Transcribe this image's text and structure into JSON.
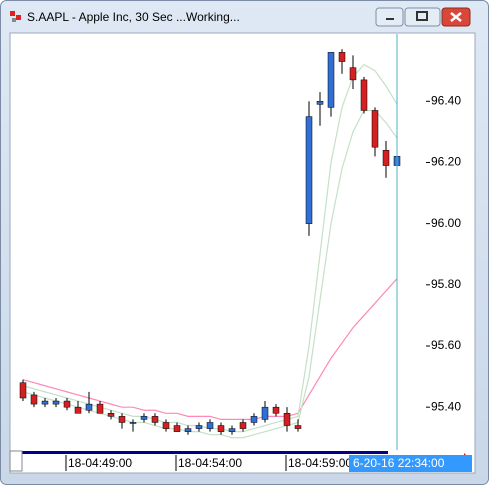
{
  "window": {
    "title": "S.AAPL - Apple Inc, 30 Sec ...Working..."
  },
  "chart_data": {
    "type": "candlestick",
    "categories": [
      null,
      null,
      null,
      null,
      "18-04:49:00",
      null,
      null,
      null,
      null,
      null,
      null,
      null,
      null,
      null,
      "18-04:54:00",
      null,
      null,
      null,
      null,
      null,
      null,
      null,
      null,
      null,
      "18-04:59:00",
      null,
      null,
      null,
      null,
      null,
      null,
      null,
      null,
      null,
      null
    ],
    "open": [
      95.48,
      95.44,
      95.41,
      95.41,
      95.42,
      95.4,
      95.39,
      95.41,
      95.38,
      95.37,
      95.35,
      95.36,
      95.37,
      95.35,
      95.34,
      95.32,
      95.33,
      95.33,
      95.34,
      95.32,
      95.35,
      95.35,
      95.36,
      95.4,
      95.38,
      95.34,
      96.0,
      96.39,
      96.38,
      96.56,
      96.51,
      96.47,
      96.37,
      96.24,
      96.19
    ],
    "high": [
      95.49,
      95.45,
      95.43,
      95.43,
      95.43,
      95.42,
      95.45,
      95.42,
      95.39,
      95.38,
      95.36,
      95.38,
      95.38,
      95.36,
      95.35,
      95.34,
      95.35,
      95.36,
      95.35,
      95.34,
      95.36,
      95.38,
      95.42,
      95.41,
      95.4,
      95.36,
      96.4,
      96.43,
      96.56,
      96.57,
      96.55,
      96.48,
      96.38,
      96.27,
      96.23
    ],
    "low": [
      95.42,
      95.4,
      95.4,
      95.4,
      95.39,
      95.38,
      95.38,
      95.38,
      95.36,
      95.33,
      95.32,
      95.35,
      95.34,
      95.32,
      95.32,
      95.31,
      95.32,
      95.32,
      95.31,
      95.31,
      95.32,
      95.34,
      95.35,
      95.37,
      95.32,
      95.32,
      95.96,
      96.32,
      96.35,
      96.49,
      96.44,
      96.36,
      96.22,
      96.15,
      96.17
    ],
    "close": [
      95.43,
      95.41,
      95.42,
      95.42,
      95.4,
      95.38,
      95.41,
      95.38,
      95.37,
      95.35,
      95.35,
      95.37,
      95.35,
      95.33,
      95.32,
      95.33,
      95.34,
      95.35,
      95.32,
      95.33,
      95.33,
      95.37,
      95.4,
      95.38,
      95.34,
      95.33,
      96.35,
      96.4,
      96.56,
      96.53,
      96.47,
      96.37,
      96.25,
      96.19,
      96.22
    ],
    "up_color": "#2f6fd6",
    "down_color": "#d42020",
    "lines": [
      {
        "color": "#ff88b8",
        "values": [
          95.49,
          95.48,
          95.47,
          95.46,
          95.45,
          95.44,
          95.43,
          95.42,
          95.41,
          95.4,
          95.4,
          95.39,
          95.39,
          95.38,
          95.38,
          95.37,
          95.37,
          95.37,
          95.36,
          95.36,
          95.36,
          95.36,
          95.37,
          95.37,
          95.37,
          95.38,
          95.44,
          95.5,
          95.56,
          95.61,
          95.66,
          95.7,
          95.74,
          95.78,
          95.82
        ]
      },
      {
        "color": "#c4e0c8",
        "values": [
          95.47,
          95.46,
          95.45,
          95.44,
          95.43,
          95.42,
          95.41,
          95.4,
          95.39,
          95.38,
          95.37,
          95.37,
          95.36,
          95.35,
          95.35,
          95.34,
          95.34,
          95.33,
          95.33,
          95.32,
          95.32,
          95.33,
          95.34,
          95.35,
          95.36,
          95.37,
          95.6,
          95.9,
          96.2,
          96.38,
          96.48,
          96.52,
          96.5,
          96.45,
          96.39
        ]
      },
      {
        "color": "#c4e0c8",
        "values": [
          95.45,
          95.44,
          95.43,
          95.42,
          95.41,
          95.4,
          95.39,
          95.38,
          95.37,
          95.36,
          95.35,
          95.35,
          95.34,
          95.33,
          95.33,
          95.32,
          95.32,
          95.31,
          95.31,
          95.3,
          95.3,
          95.31,
          95.32,
          95.33,
          95.34,
          95.35,
          95.5,
          95.75,
          96.0,
          96.18,
          96.3,
          96.37,
          96.37,
          96.33,
          96.28
        ]
      }
    ],
    "ylim": [
      95.26,
      96.62
    ],
    "yticks": [
      {
        "value": 95.4,
        "label": "95.40"
      },
      {
        "value": 95.6,
        "label": "95.60"
      },
      {
        "value": 95.8,
        "label": "95.80"
      },
      {
        "value": 96.0,
        "label": "96.00"
      },
      {
        "value": 96.2,
        "label": "96.20"
      },
      {
        "value": 96.4,
        "label": "96.40"
      }
    ],
    "cursor_time": "6-20-16 22:34:00"
  }
}
